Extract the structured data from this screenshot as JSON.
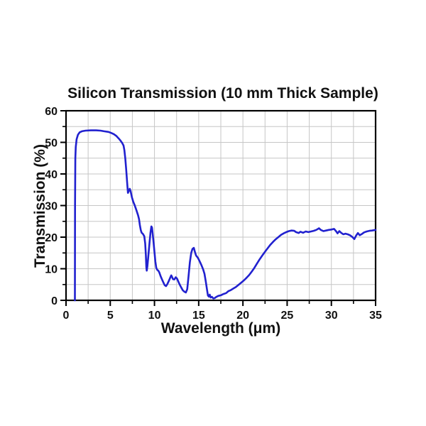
{
  "figure": {
    "background": "#ffffff"
  },
  "colors": {
    "line": "#2121cf",
    "grid": "#c6c6c6",
    "axis": "#000000",
    "text": "#111111"
  },
  "chart_data": {
    "type": "line",
    "title": "Silicon Transmission (10 mm Thick Sample)",
    "xlabel": "Wavelength (μm)",
    "ylabel": "Transmission (%)",
    "xlim": [
      0,
      35
    ],
    "ylim": [
      0,
      60
    ],
    "x_major_ticks": [
      0,
      5,
      10,
      15,
      20,
      25,
      30,
      35
    ],
    "x_minor_step": 2.5,
    "y_major_ticks": [
      0,
      10,
      20,
      30,
      40,
      50,
      60
    ],
    "y_minor_step": 5,
    "grid": "on (light gray, every minor interval: 2.5 um horizontal, 5% vertical)",
    "legend": "none",
    "series": [
      {
        "name": "Silicon transmission (10 mm thick sample)",
        "color": "#2121cf",
        "points": [
          [
            1.0,
            0
          ],
          [
            1.02,
            30
          ],
          [
            1.05,
            45
          ],
          [
            1.1,
            48.5
          ],
          [
            1.2,
            51.0
          ],
          [
            1.35,
            52.4
          ],
          [
            1.55,
            53.2
          ],
          [
            1.8,
            53.5
          ],
          [
            2.2,
            53.7
          ],
          [
            2.8,
            53.8
          ],
          [
            3.4,
            53.8
          ],
          [
            3.9,
            53.7
          ],
          [
            4.3,
            53.5
          ],
          [
            4.8,
            53.3
          ],
          [
            5.1,
            53.0
          ],
          [
            5.4,
            52.6
          ],
          [
            5.7,
            52.0
          ],
          [
            6.0,
            51.1
          ],
          [
            6.2,
            50.4
          ],
          [
            6.35,
            49.8
          ],
          [
            6.5,
            49.0
          ],
          [
            6.6,
            47.5
          ],
          [
            6.7,
            44.8
          ],
          [
            6.8,
            41.5
          ],
          [
            6.9,
            37.5
          ],
          [
            7.0,
            34.0
          ],
          [
            7.08,
            34.5
          ],
          [
            7.2,
            35.3
          ],
          [
            7.3,
            34.6
          ],
          [
            7.45,
            32.6
          ],
          [
            7.6,
            31.2
          ],
          [
            7.75,
            30.2
          ],
          [
            7.95,
            28.6
          ],
          [
            8.15,
            26.9
          ],
          [
            8.25,
            25.7
          ],
          [
            8.35,
            23.8
          ],
          [
            8.45,
            22.2
          ],
          [
            8.55,
            21.4
          ],
          [
            8.7,
            21.0
          ],
          [
            8.85,
            20.3
          ],
          [
            8.95,
            18.0
          ],
          [
            9.02,
            14.5
          ],
          [
            9.08,
            10.5
          ],
          [
            9.13,
            9.4
          ],
          [
            9.2,
            10.8
          ],
          [
            9.3,
            14.0
          ],
          [
            9.45,
            18.5
          ],
          [
            9.55,
            21.5
          ],
          [
            9.65,
            23.4
          ],
          [
            9.72,
            23.0
          ],
          [
            9.8,
            21.0
          ],
          [
            9.9,
            18.3
          ],
          [
            10.0,
            15.2
          ],
          [
            10.1,
            12.3
          ],
          [
            10.2,
            10.3
          ],
          [
            10.3,
            9.7
          ],
          [
            10.45,
            9.3
          ],
          [
            10.55,
            8.8
          ],
          [
            10.7,
            7.6
          ],
          [
            10.85,
            6.6
          ],
          [
            11.0,
            5.7
          ],
          [
            11.15,
            4.8
          ],
          [
            11.3,
            4.5
          ],
          [
            11.45,
            5.1
          ],
          [
            11.6,
            6.0
          ],
          [
            11.75,
            7.0
          ],
          [
            11.9,
            7.9
          ],
          [
            12.0,
            7.3
          ],
          [
            12.1,
            6.7
          ],
          [
            12.25,
            6.6
          ],
          [
            12.4,
            7.3
          ],
          [
            12.55,
            6.9
          ],
          [
            12.7,
            5.9
          ],
          [
            12.85,
            5.0
          ],
          [
            13.0,
            4.2
          ],
          [
            13.2,
            3.2
          ],
          [
            13.4,
            2.7
          ],
          [
            13.55,
            2.5
          ],
          [
            13.7,
            3.5
          ],
          [
            13.85,
            7.5
          ],
          [
            14.0,
            12.0
          ],
          [
            14.15,
            15.0
          ],
          [
            14.3,
            16.3
          ],
          [
            14.45,
            16.6
          ],
          [
            14.55,
            15.5
          ],
          [
            14.7,
            14.2
          ],
          [
            14.9,
            13.5
          ],
          [
            15.1,
            12.4
          ],
          [
            15.3,
            11.2
          ],
          [
            15.5,
            9.8
          ],
          [
            15.65,
            8.4
          ],
          [
            15.8,
            6.0
          ],
          [
            15.95,
            3.2
          ],
          [
            16.05,
            1.5
          ],
          [
            16.15,
            1.2
          ],
          [
            16.25,
            1.8
          ],
          [
            16.35,
            0.9
          ],
          [
            16.5,
            1.1
          ],
          [
            16.65,
            0.6
          ],
          [
            16.8,
            0.7
          ],
          [
            17.0,
            1.1
          ],
          [
            17.2,
            1.4
          ],
          [
            17.5,
            1.6
          ],
          [
            17.8,
            2.0
          ],
          [
            18.1,
            2.3
          ],
          [
            18.35,
            2.9
          ],
          [
            18.6,
            3.2
          ],
          [
            18.9,
            3.7
          ],
          [
            19.2,
            4.2
          ],
          [
            19.5,
            4.9
          ],
          [
            19.8,
            5.6
          ],
          [
            20.1,
            6.3
          ],
          [
            20.4,
            7.1
          ],
          [
            20.7,
            8.0
          ],
          [
            21.0,
            9.1
          ],
          [
            21.3,
            10.3
          ],
          [
            21.6,
            11.7
          ],
          [
            21.9,
            13.0
          ],
          [
            22.2,
            14.2
          ],
          [
            22.5,
            15.4
          ],
          [
            22.8,
            16.5
          ],
          [
            23.1,
            17.6
          ],
          [
            23.4,
            18.5
          ],
          [
            23.7,
            19.3
          ],
          [
            24.0,
            20.0
          ],
          [
            24.3,
            20.7
          ],
          [
            24.6,
            21.2
          ],
          [
            24.9,
            21.6
          ],
          [
            25.2,
            21.9
          ],
          [
            25.5,
            22.1
          ],
          [
            25.8,
            22.0
          ],
          [
            26.0,
            21.6
          ],
          [
            26.3,
            21.3
          ],
          [
            26.5,
            21.7
          ],
          [
            26.8,
            21.4
          ],
          [
            27.1,
            21.8
          ],
          [
            27.4,
            21.6
          ],
          [
            27.7,
            21.8
          ],
          [
            28.0,
            22.0
          ],
          [
            28.3,
            22.3
          ],
          [
            28.6,
            22.8
          ],
          [
            28.8,
            22.3
          ],
          [
            29.1,
            21.9
          ],
          [
            29.4,
            22.1
          ],
          [
            29.7,
            22.3
          ],
          [
            30.0,
            22.4
          ],
          [
            30.3,
            22.6
          ],
          [
            30.55,
            21.8
          ],
          [
            30.7,
            21.2
          ],
          [
            30.9,
            21.9
          ],
          [
            31.1,
            21.4
          ],
          [
            31.35,
            20.9
          ],
          [
            31.6,
            21.1
          ],
          [
            31.85,
            20.9
          ],
          [
            32.1,
            20.6
          ],
          [
            32.35,
            20.1
          ],
          [
            32.6,
            19.4
          ],
          [
            32.8,
            20.5
          ],
          [
            33.0,
            21.3
          ],
          [
            33.2,
            20.6
          ],
          [
            33.45,
            21.0
          ],
          [
            33.7,
            21.5
          ],
          [
            34.0,
            21.8
          ],
          [
            34.3,
            22.0
          ],
          [
            34.6,
            22.1
          ],
          [
            35.0,
            22.3
          ]
        ]
      }
    ]
  }
}
